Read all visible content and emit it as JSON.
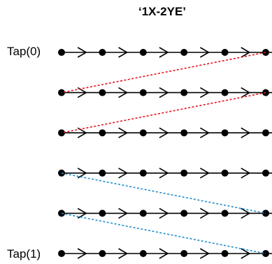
{
  "title": "‘1X-2YE’",
  "row_labels": {
    "first": "Tap(0)",
    "last": "Tap(1)"
  },
  "grid": {
    "rows": 6,
    "nodes_per_row": 6
  },
  "connections": [
    {
      "from_row": 0,
      "from_node": 5,
      "to_row": 1,
      "to_node": 0,
      "color": "#e8141b",
      "style": "dashed"
    },
    {
      "from_row": 1,
      "from_node": 5,
      "to_row": 2,
      "to_node": 0,
      "color": "#e8141b",
      "style": "dashed"
    },
    {
      "from_row": 3,
      "from_node": 0,
      "to_row": 4,
      "to_node": 5,
      "color": "#1f8fcf",
      "style": "dashed"
    },
    {
      "from_row": 4,
      "from_node": 0,
      "to_row": 5,
      "to_node": 5,
      "color": "#1f8fcf",
      "style": "dashed"
    }
  ],
  "colors": {
    "line": "#000000",
    "node": "#000000"
  }
}
